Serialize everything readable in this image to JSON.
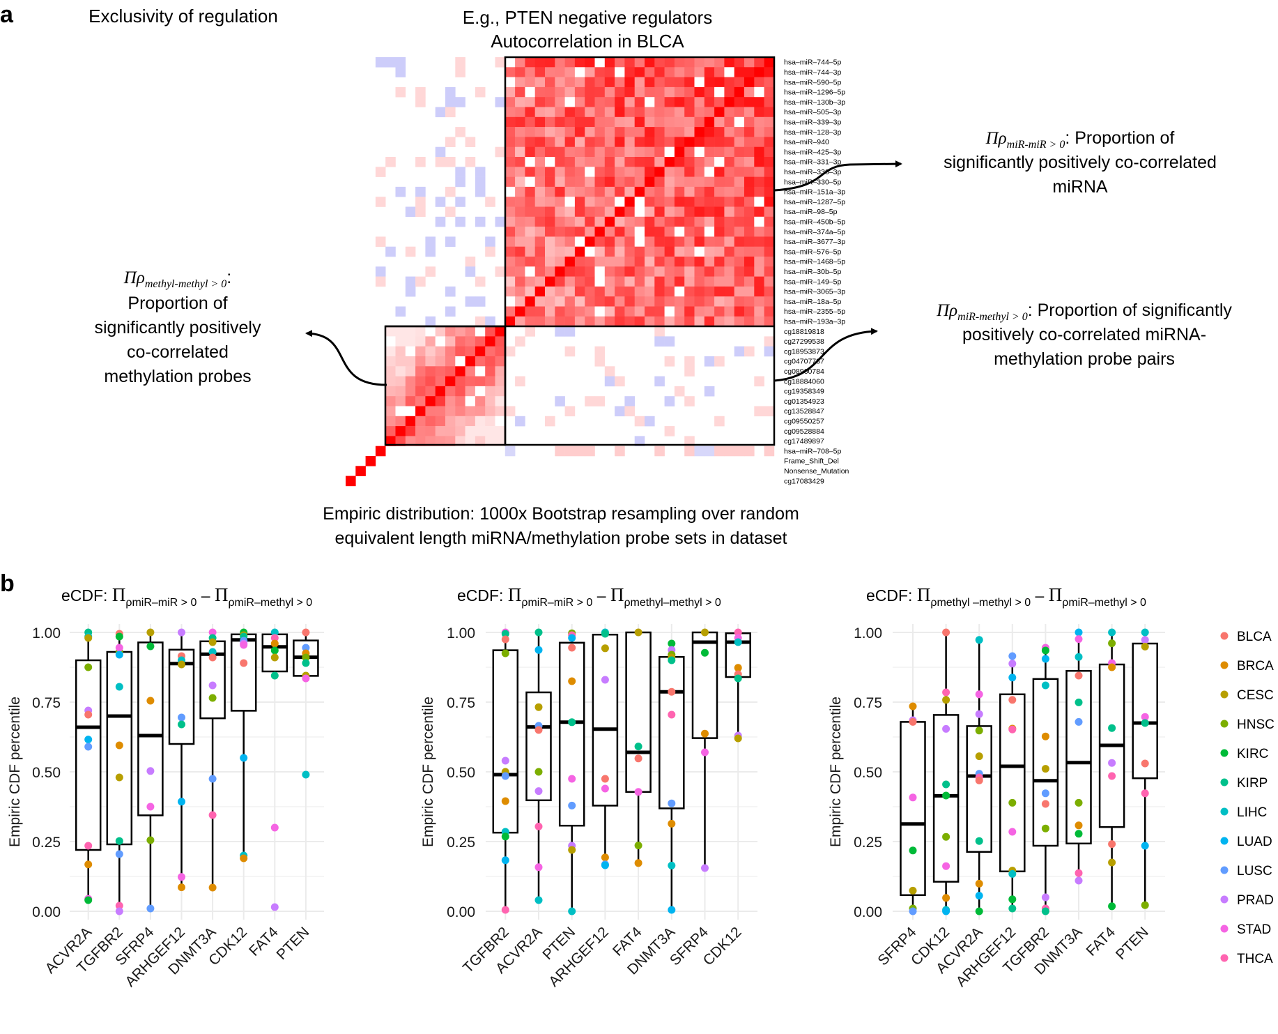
{
  "panel_a": {
    "label": "a",
    "title_left": "Exclusivity of regulation",
    "title_center_1": "E.g., PTEN negative regulators",
    "title_center_2": "Autocorrelation in BLCA",
    "ann_mirmir": {
      "pi": "Πρ",
      "sub": "miR-miR > 0",
      "line1_rest": ": Proportion of",
      "line2": "significantly positively co-correlated",
      "line3": "miRNA"
    },
    "ann_methyl": {
      "pi": "Πρ",
      "sub": "methyl-methyl > 0",
      "colon": ":",
      "line2": "Proportion of",
      "line3": "significantly positively",
      "line4": "co-correlated",
      "line5": "methylation probes"
    },
    "ann_mirmethyl": {
      "pi": "Πρ",
      "sub": "miR-methyl > 0",
      "line1_rest": ": Proportion of significantly",
      "line2": "positively co-correlated miRNA-",
      "line3": "methylation probe pairs"
    },
    "bottom_1": "Empiric distribution: 1000x Bootstrap resampling over random",
    "bottom_2": "equivalent length miRNA/methylation probe sets in dataset",
    "row_labels": [
      "hsa–miR–744–5p",
      "hsa–miR–744–3p",
      "hsa–miR–590–5p",
      "hsa–miR–1296–5p",
      "hsa–miR–130b–3p",
      "hsa–miR–505–3p",
      "hsa–miR–339–3p",
      "hsa–miR–128–3p",
      "hsa–miR–940",
      "hsa–miR–425–3p",
      "hsa–miR–331–3p",
      "hsa–miR–330–3p",
      "hsa–miR–330–5p",
      "hsa–miR–151a–3p",
      "hsa–miR–1287–5p",
      "hsa–miR–98–5p",
      "hsa–miR–450b–5p",
      "hsa–miR–374a–5p",
      "hsa–miR–3677–3p",
      "hsa–miR–576–5p",
      "hsa–miR–1468–5p",
      "hsa–miR–30b–5p",
      "hsa–miR–149–5p",
      "hsa–miR–3065–3p",
      "hsa–miR–18a–5p",
      "hsa–miR–2355–5p",
      "hsa–miR–193a–3p",
      "cg18819818",
      "cg27299538",
      "cg18953873",
      "cg04707787",
      "cg08960784",
      "cg18884060",
      "cg19358349",
      "cg01354923",
      "cg13528847",
      "cg09550257",
      "cg09528884",
      "cg17489897",
      "hsa–miR–708–5p",
      "Frame_Shift_Del",
      "Nonsense_Mutation",
      "cg17083429"
    ]
  },
  "panel_b": {
    "label": "b",
    "y_axis_title": "Empiric CDF percentile",
    "y_ticks": [
      "0.00",
      "0.25",
      "0.50",
      "0.75",
      "1.00"
    ],
    "legend": [
      {
        "name": "BLCA",
        "color": "#F8766D"
      },
      {
        "name": "BRCA",
        "color": "#DE8C00"
      },
      {
        "name": "CESC",
        "color": "#B79F00"
      },
      {
        "name": "HNSC",
        "color": "#7CAE00"
      },
      {
        "name": "KIRC",
        "color": "#00BA38"
      },
      {
        "name": "KIRP",
        "color": "#00C08B"
      },
      {
        "name": "LIHC",
        "color": "#00BFC4"
      },
      {
        "name": "LUAD",
        "color": "#00B4F0"
      },
      {
        "name": "LUSC",
        "color": "#619CFF"
      },
      {
        "name": "PRAD",
        "color": "#C77CFF"
      },
      {
        "name": "STAD",
        "color": "#F564E3"
      },
      {
        "name": "THCA",
        "color": "#FF64B0"
      }
    ]
  },
  "chart_data": [
    {
      "type": "box",
      "title": {
        "prefix": "eCDF: ",
        "pi": "Π",
        "sub1": "ρmiR–miR > 0",
        "minus": " – ",
        "sub2": "ρmiR–methyl > 0"
      },
      "ylabel": "Empiric CDF percentile",
      "ylim": [
        0,
        1
      ],
      "categories": [
        "ACVR2A",
        "TGFBR2",
        "SFRP4",
        "ARHGEF12",
        "DNMT3A",
        "CDK12",
        "FAT4",
        "PTEN"
      ],
      "boxes": [
        {
          "lo": 0.04,
          "q1": 0.22,
          "med": 0.66,
          "q3": 0.9,
          "hi": 1.0
        },
        {
          "lo": 0.0,
          "q1": 0.24,
          "med": 0.7,
          "q3": 0.93,
          "hi": 1.0
        },
        {
          "lo": 0.01,
          "q1": 0.344,
          "med": 0.63,
          "q3": 0.964,
          "hi": 1.0
        },
        {
          "lo": 0.086,
          "q1": 0.6,
          "med": 0.888,
          "q3": 0.938,
          "hi": 1.0
        },
        {
          "lo": 0.085,
          "q1": 0.692,
          "med": 0.922,
          "q3": 0.968,
          "hi": 1.0
        },
        {
          "lo": 0.19,
          "q1": 0.719,
          "med": 0.973,
          "q3": 0.993,
          "hi": 1.0
        },
        {
          "lo": 0.845,
          "q1": 0.86,
          "med": 0.948,
          "q3": 0.993,
          "hi": 1.0
        },
        {
          "lo": 0.835,
          "q1": 0.844,
          "med": 0.911,
          "q3": 0.971,
          "hi": 1.0
        }
      ],
      "points": [
        {
          "KIRP": 1.0,
          "LIHC": 0.985,
          "CESC": 0.98,
          "HNSC": 0.875,
          "PRAD": 0.72,
          "BLCA": 0.705,
          "LUAD": 0.616,
          "LUSC": 0.59,
          "THCA": 0.235,
          "BRCA": 0.168,
          "STAD": 0.045,
          "KIRC": 0.04
        },
        {
          "BLCA": 0.995,
          "KIRC": 0.985,
          "HNSC": 0.93,
          "STAD": 0.945,
          "LUAD": 0.92,
          "LIHC": 0.805,
          "BRCA": 0.595,
          "CESC": 0.48,
          "KIRP": 0.252,
          "LUSC": 0.205,
          "THCA": 0.02,
          "PRAD": 0.0
        },
        {
          "CESC": 1.0,
          "KIRC": 0.95,
          "BRCA": 0.755,
          "PRAD": 0.503,
          "STAD": 0.375,
          "HNSC": 0.255,
          "LUSC": 0.01
        },
        {
          "PRAD": 1.0,
          "BLCA": 0.915,
          "LIHC": 0.9,
          "CESC": 0.885,
          "LUSC": 0.695,
          "KIRP": 0.67,
          "LUAD": 0.393,
          "STAD": 0.123,
          "BRCA": 0.086
        },
        {
          "STAD": 1.0,
          "KIRP": 0.98,
          "CESC": 0.965,
          "LIHC": 0.93,
          "BLCA": 0.91,
          "PRAD": 0.81,
          "HNSC": 0.765,
          "LUSC": 0.475,
          "THCA": 0.345,
          "BRCA": 0.085
        },
        {
          "KIRC": 1.0,
          "CESC": 0.99,
          "KIRP": 0.985,
          "LUSC": 0.97,
          "PRAD": 0.96,
          "STAD": 0.955,
          "BLCA": 0.89,
          "LUAD": 0.55,
          "LIHC": 0.2,
          "BRCA": 0.19
        },
        {
          "LIHC": 1.0,
          "THCA": 0.98,
          "BRCA": 0.96,
          "KIRC": 0.935,
          "CESC": 0.91,
          "KIRP": 0.845,
          "STAD": 0.3,
          "PRAD": 0.015
        },
        {
          "BLCA": 1.0,
          "LUSC": 0.945,
          "BRCA": 0.925,
          "HNSC": 0.91,
          "KIRP": 0.89,
          "CESC": 0.845,
          "STAD": 0.835,
          "LIHC": 0.49
        }
      ]
    },
    {
      "type": "box",
      "title": {
        "prefix": "eCDF: ",
        "pi": "Π",
        "sub1": "ρmiR–miR > 0",
        "minus": " – ",
        "sub2": "ρmethyl–methyl > 0"
      },
      "ylabel": "Empiric CDF percentile",
      "ylim": [
        0,
        1
      ],
      "categories": [
        "TGFBR2",
        "ACVR2A",
        "PTEN",
        "ARHGEF12",
        "FAT4",
        "DNMT3A",
        "SFRP4",
        "CDK12"
      ],
      "boxes": [
        {
          "lo": 0.005,
          "q1": 0.282,
          "med": 0.49,
          "q3": 0.936,
          "hi": 1.0
        },
        {
          "lo": 0.04,
          "q1": 0.398,
          "med": 0.661,
          "q3": 0.785,
          "hi": 1.0
        },
        {
          "lo": 0.0,
          "q1": 0.307,
          "med": 0.678,
          "q3": 0.963,
          "hi": 1.0
        },
        {
          "lo": 0.165,
          "q1": 0.379,
          "med": 0.653,
          "q3": 0.992,
          "hi": 1.0
        },
        {
          "lo": 0.173,
          "q1": 0.428,
          "med": 0.57,
          "q3": 1.0,
          "hi": 1.0
        },
        {
          "lo": 0.005,
          "q1": 0.369,
          "med": 0.787,
          "q3": 0.912,
          "hi": 0.96
        },
        {
          "lo": 0.155,
          "q1": 0.621,
          "med": 0.965,
          "q3": 1.0,
          "hi": 1.0
        },
        {
          "lo": 0.62,
          "q1": 0.84,
          "med": 0.965,
          "q3": 0.997,
          "hi": 1.0
        }
      ],
      "points": [
        {
          "STAD": 1.0,
          "KIRP": 0.995,
          "BLCA": 0.975,
          "HNSC": 0.925,
          "PRAD": 0.54,
          "CESC": 0.5,
          "LUSC": 0.485,
          "BRCA": 0.395,
          "LIHC": 0.285,
          "KIRC": 0.268,
          "LUAD": 0.183,
          "THCA": 0.005
        },
        {
          "KIRP": 1.0,
          "LUAD": 0.937,
          "CESC": 0.732,
          "LUSC": 0.665,
          "BLCA": 0.65,
          "HNSC": 0.5,
          "PRAD": 0.431,
          "THCA": 0.304,
          "STAD": 0.158,
          "LIHC": 0.04
        },
        {
          "HNSC": 0.997,
          "THCA": 0.99,
          "LUAD": 0.98,
          "BLCA": 0.945,
          "BRCA": 0.825,
          "KIRP": 0.678,
          "STAD": 0.475,
          "LUSC": 0.379,
          "PRAD": 0.235,
          "CESC": 0.22,
          "LIHC": 0.0
        },
        {
          "LIHC": 1.0,
          "KIRP": 0.995,
          "CESC": 0.943,
          "PRAD": 0.83,
          "BLCA": 0.475,
          "STAD": 0.44,
          "BRCA": 0.193,
          "LUSC": 0.168,
          "LUAD": 0.165
        },
        {
          "CESC": 1.0,
          "KIRP": 0.591,
          "BLCA": 0.548,
          "STAD": 0.428,
          "HNSC": 0.236,
          "BRCA": 0.173
        },
        {
          "KIRC": 0.96,
          "PRAD": 0.937,
          "HNSC": 0.92,
          "CESC": 0.91,
          "KIRP": 0.9,
          "BLCA": 0.787,
          "THCA": 0.705,
          "LUSC": 0.387,
          "BRCA": 0.314,
          "LIHC": 0.164,
          "LUAD": 0.005
        },
        {
          "CESC": 1.0,
          "KIRC": 0.927,
          "BRCA": 0.637,
          "STAD": 0.57,
          "PRAD": 0.155
        },
        {
          "THCA": 1.0,
          "STAD": 0.98,
          "LIHC": 0.965,
          "BRCA": 0.873,
          "BLCA": 0.85,
          "KIRP": 0.835,
          "PRAD": 0.63,
          "CESC": 0.62
        }
      ]
    },
    {
      "type": "box",
      "title": {
        "prefix": "eCDF: ",
        "pi": "Π",
        "sub1": "ρmethyl –methyl > 0",
        "minus": " – ",
        "sub2": "ρmiR–methyl > 0"
      },
      "ylabel": "Empiric CDF percentile",
      "ylim": [
        0,
        1
      ],
      "categories": [
        "SFRP4",
        "CDK12",
        "ACVR2A",
        "ARHGEF12",
        "TGFBR2",
        "DNMT3A",
        "FAT4",
        "PTEN"
      ],
      "boxes": [
        {
          "lo": 0.0,
          "q1": 0.058,
          "med": 0.313,
          "q3": 0.679,
          "hi": 0.735
        },
        {
          "lo": 0.0,
          "q1": 0.106,
          "med": 0.414,
          "q3": 0.704,
          "hi": 1.0
        },
        {
          "lo": 0.0,
          "q1": 0.213,
          "med": 0.485,
          "q3": 0.664,
          "hi": 0.973
        },
        {
          "lo": 0.01,
          "q1": 0.143,
          "med": 0.52,
          "q3": 0.778,
          "hi": 0.915
        },
        {
          "lo": 0.0,
          "q1": 0.235,
          "med": 0.468,
          "q3": 0.833,
          "hi": 0.945
        },
        {
          "lo": 0.11,
          "q1": 0.243,
          "med": 0.533,
          "q3": 0.862,
          "hi": 1.0
        },
        {
          "lo": 0.018,
          "q1": 0.302,
          "med": 0.595,
          "q3": 0.885,
          "hi": 1.0
        },
        {
          "lo": 0.022,
          "q1": 0.477,
          "med": 0.675,
          "q3": 0.96,
          "hi": 1.0
        }
      ],
      "points": [
        {
          "BRCA": 0.735,
          "PRAD": 0.685,
          "BLCA": 0.679,
          "STAD": 0.408,
          "KIRC": 0.218,
          "CESC": 0.074,
          "HNSC": 0.01,
          "LUSC": 0.0
        },
        {
          "BLCA": 1.0,
          "THCA": 0.785,
          "CESC": 0.758,
          "PRAD": 0.654,
          "KIRP": 0.455,
          "KIRC": 0.415,
          "HNSC": 0.267,
          "STAD": 0.162,
          "BRCA": 0.048,
          "LIHC": 0.005,
          "LUAD": 0.0
        },
        {
          "LIHC": 0.973,
          "STAD": 0.778,
          "PRAD": 0.707,
          "HNSC": 0.648,
          "CESC": 0.556,
          "LUSC": 0.493,
          "THCA": 0.48,
          "BLCA": 0.469,
          "KIRP": 0.252,
          "BRCA": 0.099,
          "LUAD": 0.056,
          "KIRC": 0.0
        },
        {
          "LUSC": 0.915,
          "PRAD": 0.888,
          "LUAD": 0.838,
          "BLCA": 0.758,
          "BRCA": 0.655,
          "THCA": 0.652,
          "HNSC": 0.389,
          "STAD": 0.285,
          "CESC": 0.146,
          "LIHC": 0.134,
          "KIRC": 0.043,
          "KIRP": 0.01
        },
        {
          "STAD": 0.945,
          "KIRC": 0.935,
          "LUAD": 0.905,
          "LIHC": 0.81,
          "BRCA": 0.627,
          "CESC": 0.511,
          "LUSC": 0.423,
          "BLCA": 0.385,
          "HNSC": 0.297,
          "PRAD": 0.05,
          "THCA": 0.01,
          "KIRP": 0.0
        },
        {
          "LUAD": 1.0,
          "STAD": 0.976,
          "LIHC": 0.912,
          "BLCA": 0.845,
          "KIRP": 0.749,
          "LUSC": 0.679,
          "HNSC": 0.389,
          "BRCA": 0.308,
          "KIRC": 0.278,
          "THCA": 0.137,
          "PRAD": 0.11
        },
        {
          "LIHC": 1.0,
          "HNSC": 0.961,
          "STAD": 0.89,
          "BRCA": 0.875,
          "KIRP": 0.657,
          "PRAD": 0.532,
          "THCA": 0.485,
          "BLCA": 0.241,
          "CESC": 0.175,
          "KIRC": 0.018
        },
        {
          "LIHC": 1.0,
          "PRAD": 0.973,
          "CESC": 0.949,
          "STAD": 0.697,
          "KIRP": 0.675,
          "BLCA": 0.53,
          "THCA": 0.423,
          "LUAD": 0.235,
          "HNSC": 0.022
        }
      ]
    }
  ]
}
